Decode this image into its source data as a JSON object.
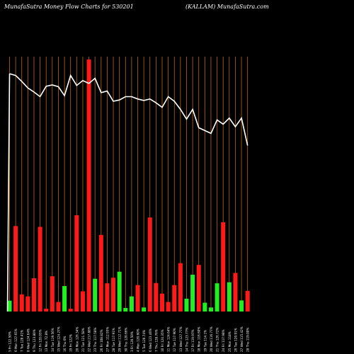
{
  "header": {
    "left": "MunafaSutra  Money Flow  Charts for 530201",
    "right": "(KALLAM) MunafaSutra.com"
  },
  "colors": {
    "background": "#000000",
    "up": "#22ee22",
    "down": "#ff1a1a",
    "line": "#ffffff",
    "grid": "#b86a10",
    "label": "#ffffff"
  },
  "chart_data": {
    "type": "bar",
    "title": "Money Flow Charts for 530201",
    "price_line_relative": [
      0.067,
      0.074,
      0.097,
      0.123,
      0.139,
      0.157,
      0.116,
      0.111,
      0.118,
      0.153,
      0.074,
      0.113,
      0.094,
      0.105,
      0.085,
      0.141,
      0.135,
      0.175,
      0.17,
      0.157,
      0.157,
      0.166,
      0.172,
      0.166,
      0.181,
      0.199,
      0.157,
      0.175,
      0.207,
      0.245,
      0.207,
      0.279,
      0.29,
      0.301,
      0.248,
      0.265,
      0.241,
      0.275,
      0.241,
      0.349
    ],
    "bars": [
      {
        "label": "5 Fri 122.50%",
        "value": 0.043,
        "direction": "up"
      },
      {
        "label": "6 Mon 127.65%",
        "value": 0.339,
        "direction": "down"
      },
      {
        "label": "7 Tue 128.41%",
        "value": 0.068,
        "direction": "down"
      },
      {
        "label": "8 Wed 124.64%",
        "value": 0.06,
        "direction": "down"
      },
      {
        "label": "9 Thu 123.80%",
        "value": 0.132,
        "direction": "down"
      },
      {
        "label": "12 Fri 120.05%",
        "value": 0.336,
        "direction": "down"
      },
      {
        "label": "13 Mon 72.8%",
        "value": 0.011,
        "direction": "down"
      },
      {
        "label": "14 Tue 119.56%",
        "value": 0.14,
        "direction": "down"
      },
      {
        "label": "15 Wed 124.27%",
        "value": 0.038,
        "direction": "down"
      },
      {
        "label": "16 Thu 0%",
        "value": 0.101,
        "direction": "up"
      },
      {
        "label": "19 Fri 122%",
        "value": 0.011,
        "direction": "down"
      },
      {
        "label": "20 Mon 126.34%",
        "value": 0.382,
        "direction": "down"
      },
      {
        "label": "21 Tue 121.58%",
        "value": 0.08,
        "direction": "down"
      },
      {
        "label": "22 Wed 217.88%",
        "value": 1.0,
        "direction": "down"
      },
      {
        "label": "23 Thu 117.58%",
        "value": 0.13,
        "direction": "up"
      },
      {
        "label": "26 Fri 108.82%",
        "value": 0.304,
        "direction": "down"
      },
      {
        "label": "27 Mon 112.93%",
        "value": 0.112,
        "direction": "down"
      },
      {
        "label": "28 Tue 117.91%",
        "value": 0.134,
        "direction": "down"
      },
      {
        "label": "29 Wed 112.71%",
        "value": 0.158,
        "direction": "up"
      },
      {
        "label": "30 Thu 120.66%",
        "value": 0.014,
        "direction": "up"
      },
      {
        "label": "3 Fri 120.50%",
        "value": 0.06,
        "direction": "up"
      },
      {
        "label": "4 Mon 120.60%",
        "value": 0.105,
        "direction": "down"
      },
      {
        "label": "5 Tue 120.74%",
        "value": 0.016,
        "direction": "up"
      },
      {
        "label": "6 Wed 123.46%",
        "value": 0.373,
        "direction": "down"
      },
      {
        "label": "7 Thu 128.76%",
        "value": 0.113,
        "direction": "down"
      },
      {
        "label": "10 Fri 124.35%",
        "value": 0.071,
        "direction": "down"
      },
      {
        "label": "11 Mon 124.64%",
        "value": 0.038,
        "direction": "down"
      },
      {
        "label": "12 Tue 117.90%",
        "value": 0.105,
        "direction": "down"
      },
      {
        "label": "13 Wed 127.77%",
        "value": 0.192,
        "direction": "down"
      },
      {
        "label": "14 Thu 123.77%",
        "value": 0.051,
        "direction": "up"
      },
      {
        "label": "17 Fri 119.97%",
        "value": 0.146,
        "direction": "up"
      },
      {
        "label": "18 Mon 116.60%",
        "value": 0.185,
        "direction": "down"
      },
      {
        "label": "19 Tue 114.1%",
        "value": 0.035,
        "direction": "up"
      },
      {
        "label": "20 Wed 116.77%",
        "value": 0.016,
        "direction": "up"
      },
      {
        "label": "21 Thu 126.72%",
        "value": 0.112,
        "direction": "up"
      },
      {
        "label": "24 Fri 117.98%",
        "value": 0.354,
        "direction": "down"
      },
      {
        "label": "25 Mon 118%",
        "value": 0.116,
        "direction": "up"
      },
      {
        "label": "26 Tue 120.91%",
        "value": 0.153,
        "direction": "down"
      },
      {
        "label": "27 Wed 115.42%",
        "value": 0.044,
        "direction": "up"
      },
      {
        "label": "28 Thu 119.00%",
        "value": 0.082,
        "direction": "down"
      }
    ]
  }
}
